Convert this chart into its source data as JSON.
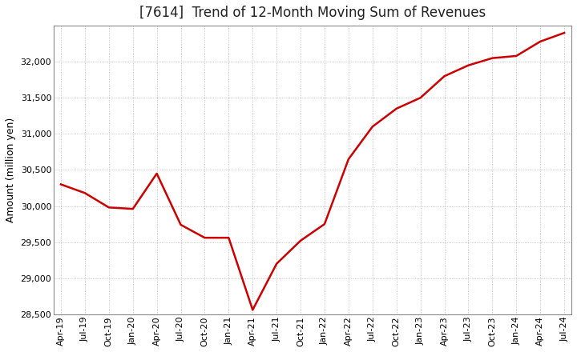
{
  "title": "[7614]  Trend of 12-Month Moving Sum of Revenues",
  "ylabel": "Amount (million yen)",
  "line_color": "#cc0000",
  "line_width": 1.8,
  "background_color": "#ffffff",
  "grid_color": "#aaaaaa",
  "ylim": [
    28500,
    32500
  ],
  "yticks": [
    28500,
    29000,
    29500,
    30000,
    30500,
    31000,
    31500,
    32000
  ],
  "values": [
    30300,
    30180,
    29980,
    29960,
    30450,
    29740,
    29560,
    29560,
    28560,
    29200,
    29520,
    29750,
    30650,
    31100,
    31350,
    31500,
    31800,
    31950,
    32050,
    32080,
    32280,
    32400
  ],
  "xtick_labels": [
    "Apr-19",
    "Jul-19",
    "Oct-19",
    "Jan-20",
    "Apr-20",
    "Jul-20",
    "Oct-20",
    "Jan-21",
    "Apr-21",
    "Jul-21",
    "Oct-21",
    "Jan-22",
    "Apr-22",
    "Jul-22",
    "Oct-22",
    "Jan-23",
    "Apr-23",
    "Jul-23",
    "Oct-23",
    "Jan-24",
    "Apr-24",
    "Jul-24"
  ],
  "title_fontsize": 12,
  "axis_fontsize": 9,
  "tick_fontsize": 8
}
